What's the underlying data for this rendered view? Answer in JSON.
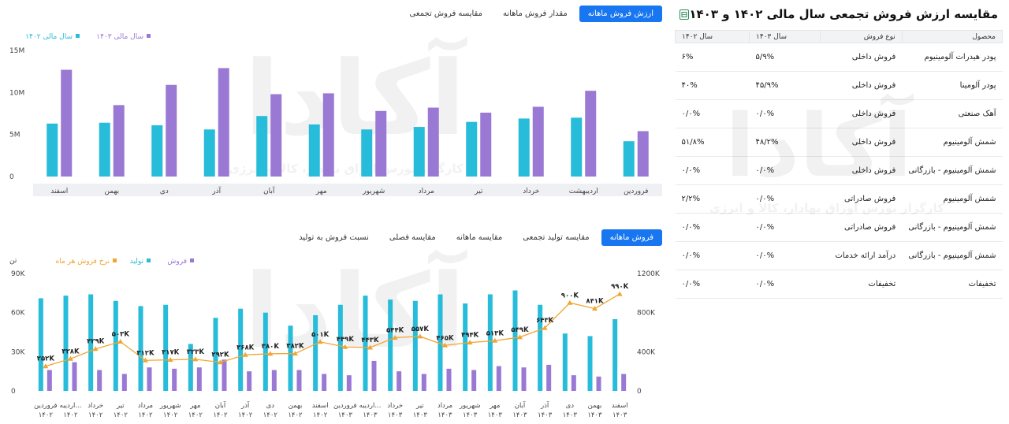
{
  "top_tabs": [
    {
      "label": "ارزش فروش ماهانه",
      "active": true
    },
    {
      "label": "مقدار فروش ماهانه",
      "active": false
    },
    {
      "label": "مقایسه فروش تجمعی",
      "active": false
    }
  ],
  "bottom_tabs": [
    {
      "label": "فروش ماهانه",
      "active": true
    },
    {
      "label": "مقایسه تولید تجمعی",
      "active": false
    },
    {
      "label": "مقایسه ماهانه",
      "active": false
    },
    {
      "label": "مقایسه فصلی",
      "active": false
    },
    {
      "label": "نسبت فروش به تولید",
      "active": false
    }
  ],
  "panel": {
    "title": "مقایسه ارزش فروش تجمعی سال مالی ۱۴۰۲ و ۱۴۰۳",
    "export_icon": "excel-icon",
    "headers": [
      "محصول",
      "نوع فروش",
      "سال ۱۴۰۳",
      "سال ۱۴۰۲"
    ],
    "rows": [
      [
        "پودر هیدرات آلومینیوم",
        "فروش داخلی",
        "۵/۹%",
        "۶%"
      ],
      [
        "پودر آلومینا",
        "فروش داخلی",
        "۴۵/۹%",
        "۴۰%"
      ],
      [
        "آهک صنعتی",
        "فروش داخلی",
        "۰/۰%",
        "۰/۰%"
      ],
      [
        "شمش آلومینیوم",
        "فروش داخلی",
        "۴۸/۲%",
        "۵۱/۸%"
      ],
      [
        "شمش آلومینیوم - بازرگانی",
        "فروش داخلی",
        "۰/۰%",
        "۰/۰%"
      ],
      [
        "شمش آلومینیوم",
        "فروش صادراتی",
        "۰/۰%",
        "۲/۲%"
      ],
      [
        "شمش آلومینیوم - بازرگانی",
        "فروش صادراتی",
        "۰/۰%",
        "۰/۰%"
      ],
      [
        "شمش آلومینیوم - بازرگانی",
        "درآمد ارائه خدمات",
        "۰/۰%",
        "۰/۰%"
      ],
      [
        "تخفیفات",
        "تخفیفات",
        "۰/۰%",
        "۰/۰%"
      ]
    ]
  },
  "watermark": {
    "logo": "آکادا",
    "tagline": "کارگزار بورس اوراق بهادار، کالا و انرژی"
  },
  "colors": {
    "accent": "#1976f1",
    "series_1402": "#27bcd9",
    "series_1403": "#9a79d4",
    "rate": "#f2a530"
  },
  "chart_data": [
    {
      "type": "bar",
      "title": "",
      "legend": [
        {
          "name": "سال مالی ۱۴۰۳",
          "color": "#9a79d4"
        },
        {
          "name": "سال مالی ۱۴۰۲",
          "color": "#27bcd9"
        }
      ],
      "legend_position": "top-left",
      "y_ticks": [
        "0",
        "5M",
        "10M",
        "15M"
      ],
      "ylim": [
        0,
        15
      ],
      "grid": false,
      "categories": [
        "فروردین",
        "اردیبهشت",
        "خرداد",
        "تیر",
        "مرداد",
        "شهریور",
        "مهر",
        "آبان",
        "آذر",
        "دی",
        "بهمن",
        "اسفند"
      ],
      "series": [
        {
          "name": "سال مالی ۱۴۰۲",
          "values": [
            4.2,
            7.0,
            6.9,
            6.5,
            5.9,
            5.6,
            6.2,
            7.2,
            5.6,
            6.1,
            6.4,
            6.3
          ]
        },
        {
          "name": "سال مالی ۱۴۰۳",
          "values": [
            5.4,
            10.2,
            8.3,
            7.6,
            8.2,
            7.8,
            9.9,
            9.8,
            12.9,
            10.9,
            8.5,
            12.7
          ]
        }
      ]
    },
    {
      "type": "bar",
      "title": "",
      "y_unit_label": "تن",
      "legend": [
        {
          "name": "فروش",
          "color": "#9a79d4"
        },
        {
          "name": "تولید",
          "color": "#27bcd9"
        },
        {
          "name": "نرخ فروش هر ماه",
          "color": "#f2a530"
        }
      ],
      "legend_position": "top-left",
      "y_ticks_left": [
        "0",
        "30K",
        "60K",
        "90K"
      ],
      "ylim_left": [
        0,
        90
      ],
      "y_ticks_right": [
        "0",
        "400K",
        "800K",
        "1200K"
      ],
      "ylim_right": [
        0,
        1200
      ],
      "grid": false,
      "categories": [
        [
          "فروردین",
          "۱۴۰۲"
        ],
        [
          "اردیبه...",
          "۱۴۰۲"
        ],
        [
          "خرداد",
          "۱۴۰۲"
        ],
        [
          "تیر",
          "۱۴۰۲"
        ],
        [
          "مرداد",
          "۱۴۰۲"
        ],
        [
          "شهریور",
          "۱۴۰۲"
        ],
        [
          "مهر",
          "۱۴۰۲"
        ],
        [
          "آبان",
          "۱۴۰۲"
        ],
        [
          "آذر",
          "۱۴۰۲"
        ],
        [
          "دی",
          "۱۴۰۲"
        ],
        [
          "بهمن",
          "۱۴۰۲"
        ],
        [
          "اسفند",
          "۱۴۰۲"
        ],
        [
          "فروردین",
          "۱۴۰۳"
        ],
        [
          "اردیبه...",
          "۱۴۰۳"
        ],
        [
          "خرداد",
          "۱۴۰۳"
        ],
        [
          "تیر",
          "۱۴۰۳"
        ],
        [
          "مرداد",
          "۱۴۰۳"
        ],
        [
          "شهریور",
          "۱۴۰۳"
        ],
        [
          "مهر",
          "۱۴۰۳"
        ],
        [
          "آبان",
          "۱۴۰۳"
        ],
        [
          "آذر",
          "۱۴۰۳"
        ],
        [
          "دی",
          "۱۴۰۳"
        ],
        [
          "بهمن",
          "۱۴۰۳"
        ],
        [
          "اسفند",
          "۱۴۰۳"
        ]
      ],
      "series": [
        {
          "name": "تولید",
          "values": [
            71,
            73,
            74,
            69,
            65,
            66,
            36,
            56,
            63,
            60,
            50,
            58,
            66,
            73,
            70,
            69,
            74,
            67,
            74,
            77,
            66,
            44,
            42,
            55
          ]
        },
        {
          "name": "فروش",
          "values": [
            16,
            22,
            16,
            13,
            18,
            17,
            18,
            24,
            15,
            16,
            16,
            13,
            12,
            23,
            15,
            13,
            17,
            16,
            19,
            18,
            20,
            12,
            11,
            13
          ]
        },
        {
          "name": "نرخ فروش هر ماه",
          "axis": "right",
          "values": [
            252,
            328,
            429,
            503,
            312,
            317,
            323,
            292,
            368,
            380,
            382,
            501,
            449,
            443,
            544,
            557,
            465,
            494,
            513,
            549,
            643,
            900,
            841,
            990
          ],
          "labels": [
            "۲۵۲K",
            "۳۲۸K",
            "۴۲۹K",
            "۵۰۳K",
            "۳۱۲K",
            "۳۱۷K",
            "۳۲۳K",
            "۲۹۲K",
            "۳۶۸K",
            "۳۸۰K",
            "۳۸۲K",
            "۵۰۱K",
            "۴۴۹K",
            "۴۴۳K",
            "۵۴۴K",
            "۵۵۷K",
            "۴۶۵K",
            "۴۹۴K",
            "۵۱۳K",
            "۵۴۹K",
            "۶۴۳K",
            "۹۰۰K",
            "۸۴۱K",
            "۹۹۰K"
          ]
        }
      ]
    }
  ]
}
